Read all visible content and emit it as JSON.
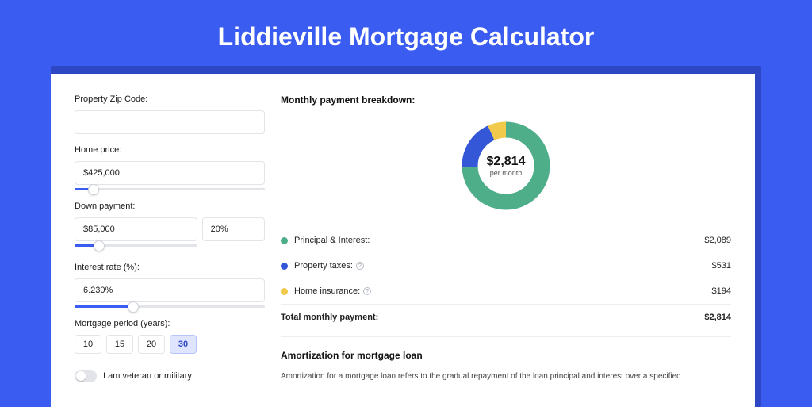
{
  "header": {
    "title": "Liddieville Mortgage Calculator"
  },
  "colors": {
    "page_bg": "#3a5cf0",
    "shadow_bg": "#2e47c4",
    "card_bg": "#ffffff",
    "border": "#e2e4ea",
    "slider_track": "#e2e4ea",
    "slider_fill": "#3a5cf0",
    "period_active_bg": "#dfe5ff",
    "period_active_border": "#b8c3f7",
    "text": "#1a1a1a"
  },
  "form": {
    "zip": {
      "label": "Property Zip Code:",
      "value": ""
    },
    "home_price": {
      "label": "Home price:",
      "value": "$425,000",
      "slider_pct": 10
    },
    "down_payment": {
      "label": "Down payment:",
      "value": "$85,000",
      "pct_field": "20%",
      "slider_pct": 20
    },
    "interest_rate": {
      "label": "Interest rate (%):",
      "value": "6.230%",
      "slider_pct": 31
    },
    "period": {
      "label": "Mortgage period (years):",
      "options": [
        "10",
        "15",
        "20",
        "30"
      ],
      "selected": "30"
    },
    "veteran": {
      "label": "I am veteran or military",
      "on": false
    }
  },
  "breakdown": {
    "title": "Monthly payment breakdown:",
    "donut": {
      "amount": "$2,814",
      "sub": "per month",
      "segments": [
        {
          "key": "principal_interest",
          "color": "#4fae8a",
          "pct": 74.2
        },
        {
          "key": "property_taxes",
          "color": "#3357d6",
          "pct": 18.9
        },
        {
          "key": "home_insurance",
          "color": "#f1c94b",
          "pct": 6.9
        }
      ]
    },
    "items": [
      {
        "label": "Principal & Interest:",
        "value": "$2,089",
        "color": "#4fae8a",
        "info": false
      },
      {
        "label": "Property taxes:",
        "value": "$531",
        "color": "#3357d6",
        "info": true
      },
      {
        "label": "Home insurance:",
        "value": "$194",
        "color": "#f1c94b",
        "info": true
      }
    ],
    "total": {
      "label": "Total monthly payment:",
      "value": "$2,814"
    }
  },
  "amortization": {
    "title": "Amortization for mortgage loan",
    "text": "Amortization for a mortgage loan refers to the gradual repayment of the loan principal and interest over a specified"
  }
}
